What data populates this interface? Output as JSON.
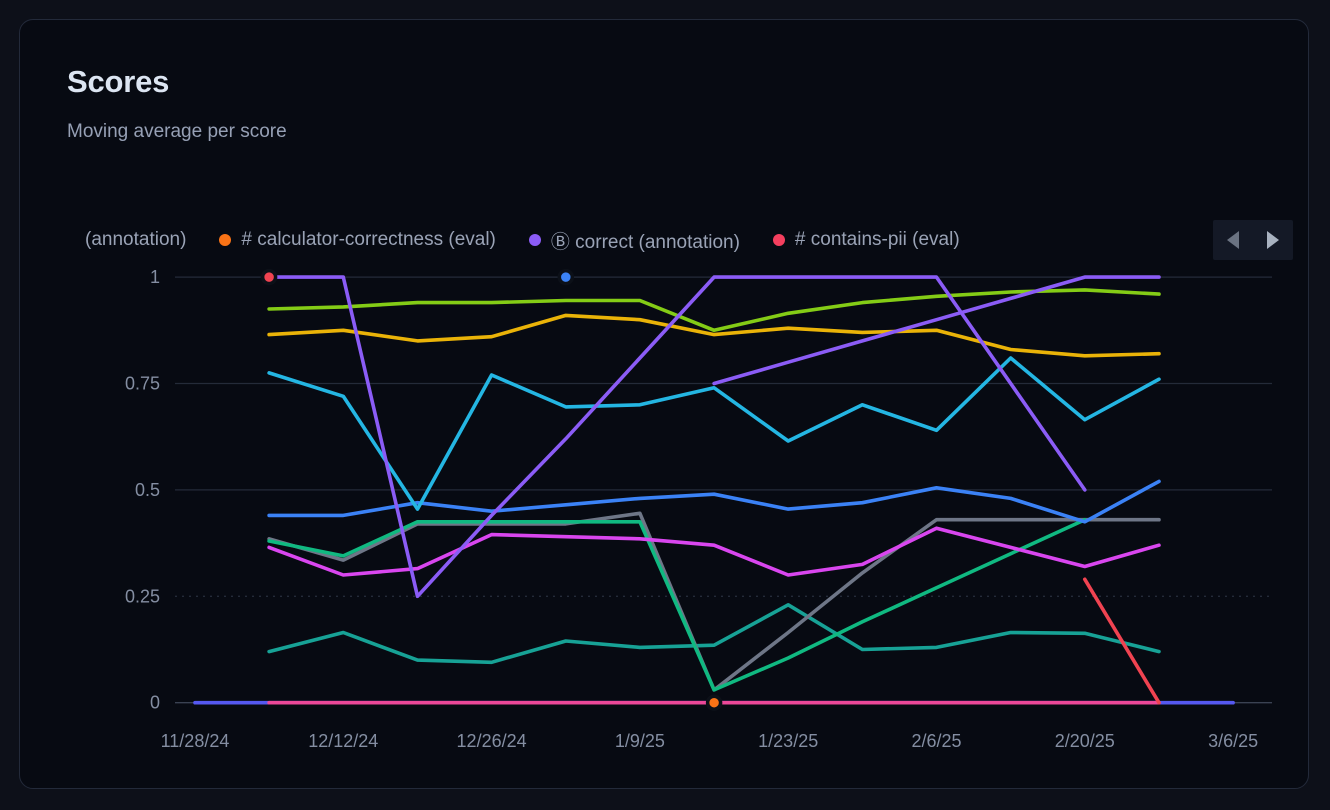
{
  "card": {
    "title": "Scores",
    "subtitle": "Moving average per score"
  },
  "legend": {
    "items": [
      {
        "label": "(annotation)",
        "color": null
      },
      {
        "label": "# calculator-correctness (eval)",
        "color": "#f97316"
      },
      {
        "label": "Ⓑ correct (annotation)",
        "color": "#8b5cf6"
      },
      {
        "label": "# contains-pii (eval)",
        "color": "#f43f5e"
      }
    ],
    "nav": {
      "prev": "scroll-legend-left",
      "next": "scroll-legend-right"
    }
  },
  "chart_data": {
    "type": "line",
    "title": "Scores",
    "subtitle": "Moving average per score",
    "xlabel": "",
    "ylabel": "",
    "ylim": [
      0,
      1
    ],
    "grid": true,
    "legend_position": "top",
    "x": [
      "11/28/24",
      "12/5/24",
      "12/12/24",
      "12/19/24",
      "12/26/24",
      "1/2/25",
      "1/9/25",
      "1/16/25",
      "1/23/25",
      "1/30/25",
      "2/6/25",
      "2/13/25",
      "2/20/25",
      "2/27/25",
      "3/6/25"
    ],
    "x_tick_labels": [
      "11/28/24",
      "12/12/24",
      "12/26/24",
      "1/9/25",
      "1/23/25",
      "2/6/25",
      "2/20/25",
      "3/6/25"
    ],
    "y_ticks": [
      {
        "v": 1,
        "label": "1"
      },
      {
        "v": 0.75,
        "label": "0.75"
      },
      {
        "v": 0.5,
        "label": "0.5"
      },
      {
        "v": 0.25,
        "label": "0.25"
      },
      {
        "v": 0,
        "label": "0"
      }
    ],
    "series": [
      {
        "id": "indigo-zero-line",
        "color": "#5558f0",
        "values": [
          0,
          0,
          0,
          0,
          0,
          0,
          0,
          0,
          0,
          0,
          0,
          0,
          0,
          0,
          0
        ]
      },
      {
        "id": "pink-zero-line",
        "color": "#ec4899",
        "values": [
          null,
          0,
          0,
          0,
          0,
          0,
          0,
          0,
          0,
          0,
          0,
          0,
          0,
          0,
          null
        ]
      },
      {
        "id": "teal-line",
        "color": "#17a296",
        "values": [
          null,
          0.12,
          0.165,
          0.1,
          0.095,
          0.145,
          0.13,
          0.135,
          0.23,
          0.125,
          0.13,
          0.165,
          0.163,
          0.12,
          null
        ]
      },
      {
        "id": "gray-line",
        "color": "#6e7687",
        "values": [
          null,
          0.385,
          0.335,
          0.42,
          0.42,
          0.42,
          0.445,
          0.03,
          0.165,
          0.305,
          0.43,
          0.43,
          0.43,
          0.43,
          null
        ]
      },
      {
        "id": "emerald-line",
        "color": "#10b981",
        "values": [
          null,
          0.38,
          0.345,
          0.425,
          0.425,
          0.425,
          0.425,
          0.03,
          0.105,
          0.19,
          0.27,
          0.35,
          0.43,
          null,
          null
        ]
      },
      {
        "id": "magenta-line",
        "color": "#d946ef",
        "values": [
          null,
          0.365,
          0.3,
          0.315,
          0.395,
          0.39,
          0.385,
          0.37,
          0.3,
          0.325,
          0.41,
          0.365,
          0.32,
          0.37,
          null
        ]
      },
      {
        "id": "blue-line",
        "color": "#3b82f6",
        "values": [
          null,
          0.44,
          0.44,
          0.47,
          0.45,
          0.465,
          0.48,
          0.49,
          0.455,
          0.47,
          0.505,
          0.48,
          0.425,
          0.52,
          null
        ]
      },
      {
        "id": "cyan-line",
        "color": "#24b6e3",
        "values": [
          null,
          0.775,
          0.72,
          0.455,
          0.77,
          0.695,
          0.7,
          0.74,
          0.615,
          0.7,
          0.64,
          0.81,
          0.665,
          0.76,
          null
        ]
      },
      {
        "id": "amber-line",
        "color": "#eab308",
        "values": [
          null,
          0.865,
          0.875,
          0.85,
          0.86,
          0.91,
          0.9,
          0.865,
          0.88,
          0.87,
          0.875,
          0.83,
          0.815,
          0.82,
          null
        ]
      },
      {
        "id": "lime-line",
        "color": "#84cc16",
        "values": [
          null,
          0.925,
          0.93,
          0.94,
          0.94,
          0.945,
          0.945,
          0.875,
          0.915,
          0.94,
          0.955,
          0.965,
          0.97,
          0.96,
          null
        ]
      },
      {
        "id": "violet-line-2",
        "color": "#8b5cf6",
        "values": [
          null,
          null,
          null,
          null,
          null,
          null,
          null,
          0.75,
          0.8,
          0.85,
          0.9,
          0.95,
          1,
          1,
          null
        ]
      },
      {
        "id": "violet-line-1",
        "color": "#8b5cf6",
        "values": [
          null,
          1,
          1,
          0.25,
          0.44,
          0.62,
          0.81,
          1,
          1,
          1,
          1,
          0.75,
          0.5,
          null,
          null
        ]
      },
      {
        "id": "red-line",
        "color": "#f04351",
        "values": [
          null,
          1,
          null,
          null,
          null,
          null,
          null,
          null,
          null,
          null,
          null,
          null,
          0.29,
          0,
          null
        ]
      },
      {
        "id": "orange-point",
        "color": "#f97316",
        "values": [
          null,
          null,
          null,
          null,
          null,
          null,
          null,
          0,
          null,
          null,
          null,
          null,
          null,
          null,
          null
        ]
      },
      {
        "id": "blue-point",
        "color": "#3b82f6",
        "values": [
          null,
          null,
          null,
          null,
          null,
          1,
          null,
          null,
          null,
          null,
          null,
          null,
          null,
          null,
          null
        ]
      }
    ],
    "markers": [
      {
        "x": "12/5/24",
        "x_index": 1,
        "v": 1,
        "color": "#f04351"
      },
      {
        "x": "1/2/25",
        "x_index": 5,
        "v": 1,
        "color": "#3b82f6"
      },
      {
        "x": "1/16/25",
        "x_index": 7,
        "v": 0,
        "color": "#f97316"
      }
    ]
  }
}
